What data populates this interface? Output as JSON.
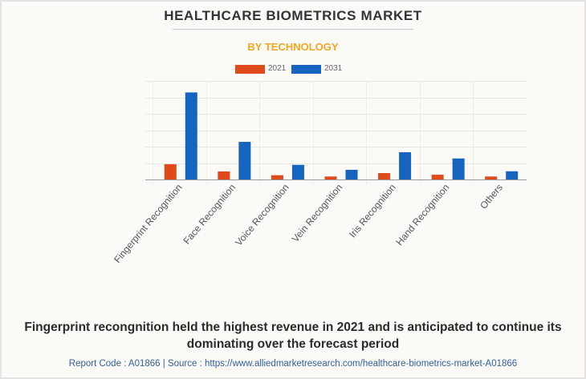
{
  "header": {
    "title": "HEALTHCARE BIOMETRICS MARKET",
    "subtitle": "BY TECHNOLOGY"
  },
  "colors": {
    "series_2021": "#e04a1a",
    "series_2031": "#1565c0",
    "subtitle": "#f5a623"
  },
  "chart_data": {
    "type": "bar",
    "title": "HEALTHCARE BIOMETRICS MARKET",
    "subtitle": "BY TECHNOLOGY",
    "xlabel": "",
    "ylabel": "",
    "categories": [
      "Fingerprint Recognition",
      "Face Recognition",
      "Voice Recognition",
      "Vein Recognition",
      "Iris Recognition",
      "Hand Recognition",
      "Others"
    ],
    "series": [
      {
        "name": "2021",
        "color": "#e04a1a",
        "values": [
          0.93,
          0.49,
          0.26,
          0.18,
          0.39,
          0.29,
          0.18
        ]
      },
      {
        "name": "2031",
        "color": "#1565c0",
        "values": [
          5.3,
          2.29,
          0.89,
          0.59,
          1.66,
          1.28,
          0.5
        ]
      }
    ],
    "ylim": [
      0,
      6
    ],
    "y_gridlines": [
      0,
      1,
      2,
      3,
      4,
      5,
      6
    ],
    "y_tick_labels_shown": false,
    "grid": true,
    "legend": {
      "position": "top-center",
      "entries": [
        "2021",
        "2031"
      ]
    },
    "note": "Values in relative units (gridline steps); no y-axis scale printed"
  },
  "caption": "Fingerprint recongnition held the highest revenue in 2021 and is anticipated to continue its dominating over the forecast period",
  "source": "Report Code : A01866  |  Source : https://www.alliedmarketresearch.com/healthcare-biometrics-market-A01866"
}
